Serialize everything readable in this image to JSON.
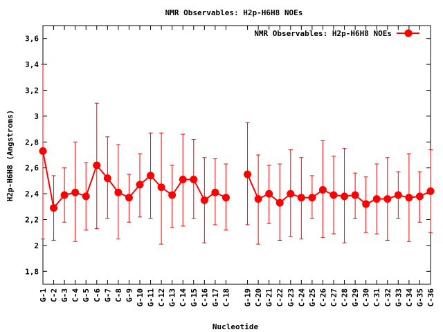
{
  "chart_data": {
    "type": "line",
    "title": "NMR Observables: H2p-H6H8 NOEs",
    "xlabel": "Nucleotide",
    "ylabel": "H2p-H6H8 (Angstroms)",
    "ylim": [
      1.7,
      3.7
    ],
    "yticks": [
      1.8,
      2,
      2.2,
      2.4,
      2.6,
      2.8,
      3,
      3.2,
      3.4,
      3.6
    ],
    "ytick_labels": [
      "1,8",
      "2",
      "2,2",
      "2,4",
      "2,6",
      "2,8",
      "3",
      "3,2",
      "3,4",
      "3,6"
    ],
    "xlim": [
      1,
      37
    ],
    "grid": false,
    "legend": "top-right",
    "color": "#ff0000",
    "categories": [
      "G-1",
      "C-2",
      "G-3",
      "C-4",
      "G-5",
      "C-6",
      "G-7",
      "C-8",
      "G-9",
      "G-10",
      "G-11",
      "C-12",
      "G-13",
      "C-14",
      "G-15",
      "C-16",
      "G-17",
      "C-18",
      "G-19",
      "C-20",
      "G-21",
      "C-22",
      "G-23",
      "C-24",
      "G-25",
      "C-26",
      "C-27",
      "C-28",
      "G-29",
      "C-30",
      "C-31",
      "C-32",
      "G-33",
      "C-34",
      "G-35",
      "C-36"
    ],
    "x": [
      1,
      2,
      3,
      4,
      5,
      6,
      7,
      8,
      9,
      10,
      11,
      12,
      13,
      14,
      15,
      16,
      17,
      18,
      20,
      21,
      22,
      23,
      24,
      25,
      26,
      27,
      28,
      29,
      30,
      31,
      32,
      33,
      34,
      35,
      36,
      37
    ],
    "series": [
      {
        "name": "NMR Observables: H2p-H6H8 NOEs",
        "values": [
          2.73,
          2.29,
          2.39,
          2.41,
          2.38,
          2.62,
          2.52,
          2.41,
          2.37,
          2.47,
          2.54,
          2.45,
          2.39,
          2.51,
          2.51,
          2.35,
          2.41,
          2.37,
          2.55,
          2.36,
          2.4,
          2.33,
          2.4,
          2.37,
          2.37,
          2.43,
          2.39,
          2.38,
          2.39,
          2.32,
          2.36,
          2.36,
          2.39,
          2.37,
          2.38,
          2.42
        ],
        "err_low": [
          2.05,
          2.04,
          2.18,
          2.03,
          2.12,
          2.13,
          2.21,
          2.05,
          2.18,
          2.22,
          2.21,
          2.01,
          2.14,
          2.15,
          2.21,
          2.02,
          2.16,
          2.12,
          2.16,
          2.01,
          2.17,
          2.04,
          2.07,
          2.05,
          2.21,
          2.06,
          2.09,
          2.02,
          2.21,
          2.1,
          2.09,
          2.04,
          2.21,
          2.03,
          2.18,
          2.1
        ],
        "err_high": [
          3.4,
          2.54,
          2.6,
          2.8,
          2.64,
          3.1,
          2.84,
          2.78,
          2.55,
          2.71,
          2.87,
          2.87,
          2.62,
          2.86,
          2.82,
          2.68,
          2.67,
          2.63,
          2.95,
          2.7,
          2.62,
          2.63,
          2.74,
          2.68,
          2.54,
          2.81,
          2.69,
          2.75,
          2.56,
          2.53,
          2.63,
          2.68,
          2.57,
          2.71,
          2.57,
          2.74
        ]
      }
    ]
  }
}
